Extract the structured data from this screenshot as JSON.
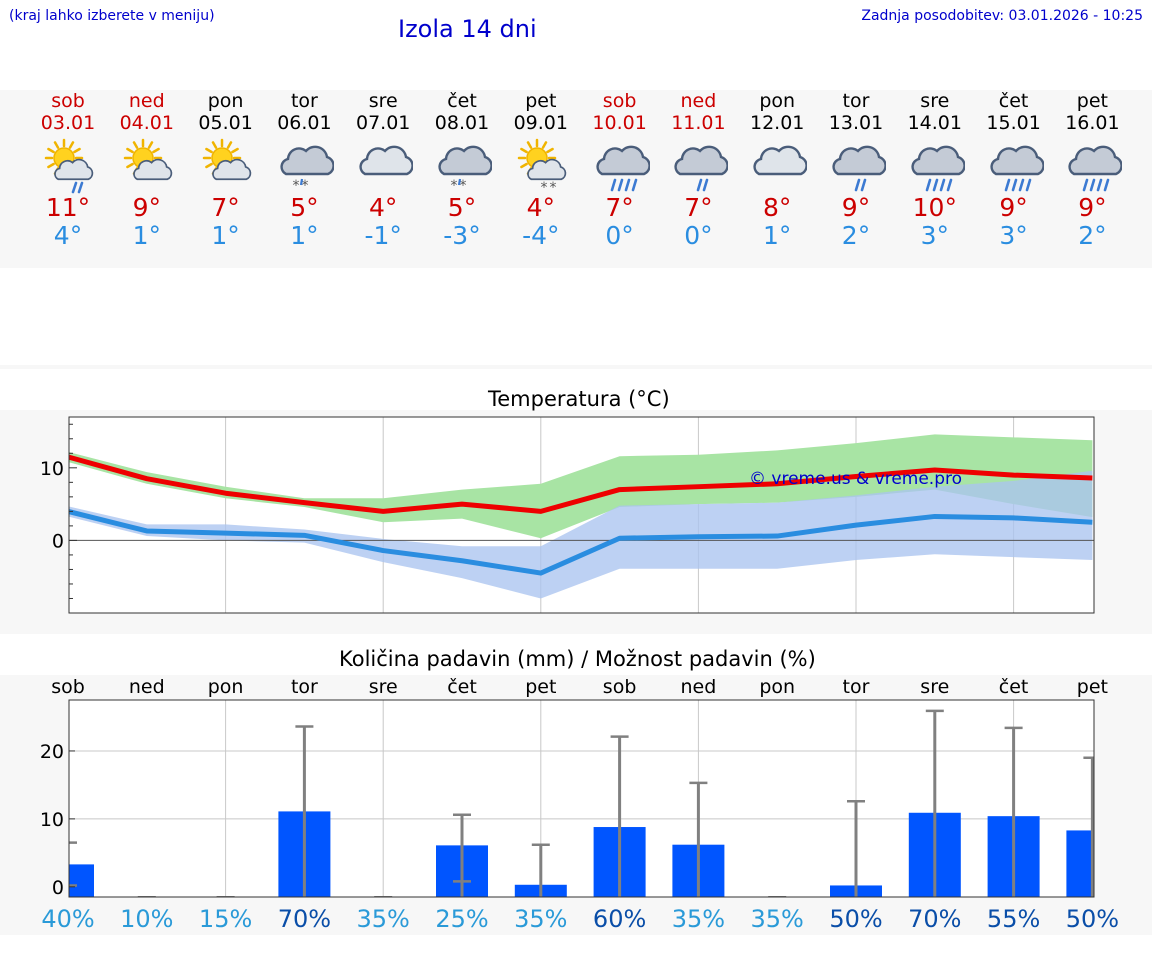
{
  "header": {
    "left_note": "(kraj lahko izberete v meniju)",
    "title": "Izola 14 dni",
    "last_update": "Zadnja posodobitev: 03.01.2026 - 10:25"
  },
  "days": [
    {
      "name": "sob",
      "date": "03.01",
      "weekend": true,
      "icon": "sun-cloud-rain-icon",
      "tmax": "11°",
      "tmin": "4°"
    },
    {
      "name": "ned",
      "date": "04.01",
      "weekend": true,
      "icon": "sun-cloud-icon",
      "tmax": "9°",
      "tmin": "1°"
    },
    {
      "name": "pon",
      "date": "05.01",
      "weekend": false,
      "icon": "sun-cloud-icon",
      "tmax": "7°",
      "tmin": "1°"
    },
    {
      "name": "tor",
      "date": "06.01",
      "weekend": false,
      "icon": "cloud-snow-icon",
      "tmax": "5°",
      "tmin": "1°"
    },
    {
      "name": "sre",
      "date": "07.01",
      "weekend": false,
      "icon": "cloud-icon",
      "tmax": "4°",
      "tmin": "-1°"
    },
    {
      "name": "čet",
      "date": "08.01",
      "weekend": false,
      "icon": "cloud-snow-icon",
      "tmax": "5°",
      "tmin": "-3°"
    },
    {
      "name": "pet",
      "date": "09.01",
      "weekend": false,
      "icon": "sun-cloud-snow-icon",
      "tmax": "4°",
      "tmin": "-4°"
    },
    {
      "name": "sob",
      "date": "10.01",
      "weekend": true,
      "icon": "cloud-heavy-rain-icon",
      "tmax": "7°",
      "tmin": "0°"
    },
    {
      "name": "ned",
      "date": "11.01",
      "weekend": true,
      "icon": "cloud-rain-icon",
      "tmax": "7°",
      "tmin": "0°"
    },
    {
      "name": "pon",
      "date": "12.01",
      "weekend": false,
      "icon": "cloud-icon",
      "tmax": "8°",
      "tmin": "1°"
    },
    {
      "name": "tor",
      "date": "13.01",
      "weekend": false,
      "icon": "cloud-rain-icon",
      "tmax": "9°",
      "tmin": "2°"
    },
    {
      "name": "sre",
      "date": "14.01",
      "weekend": false,
      "icon": "cloud-heavy-rain-icon",
      "tmax": "10°",
      "tmin": "3°"
    },
    {
      "name": "čet",
      "date": "15.01",
      "weekend": false,
      "icon": "cloud-heavy-rain-icon",
      "tmax": "9°",
      "tmin": "3°"
    },
    {
      "name": "pet",
      "date": "16.01",
      "weekend": false,
      "icon": "cloud-heavy-rain-icon",
      "tmax": "9°",
      "tmin": "2°"
    }
  ],
  "colors": {
    "max_line": "#ee0000",
    "min_line": "#2a8de0",
    "max_band": "#a8e4a4",
    "min_band": "#aac4f0",
    "overlap_band": "#7ec8a8",
    "bar": "#0055ff",
    "whisker": "#808080",
    "pct_light": "#2a9ad8",
    "pct_dark": "#0a4ea8",
    "title_blue": "#0000cc"
  },
  "chart_data": [
    {
      "type": "line",
      "title": "Temperatura (°C)",
      "x": [
        "sob",
        "ned",
        "pon",
        "tor",
        "sre",
        "čet",
        "pet",
        "sob",
        "ned",
        "pon",
        "tor",
        "sre",
        "čet",
        "pet"
      ],
      "ylim": [
        -10,
        17
      ],
      "yticks": [
        0,
        10
      ],
      "yticks_labels": [
        "0",
        "10"
      ],
      "watermark": "© vreme.us & vreme.pro",
      "series": [
        {
          "name": "max",
          "values": [
            11.5,
            8.5,
            6.5,
            5.2,
            4.0,
            5.0,
            4.0,
            7.0,
            7.4,
            7.8,
            8.8,
            9.7,
            9.0,
            8.6
          ],
          "band_low": [
            10.8,
            7.8,
            5.8,
            4.6,
            2.5,
            3.0,
            0.3,
            4.6,
            5.0,
            5.2,
            6.0,
            7.0,
            5.0,
            3.2
          ],
          "band_high": [
            12.2,
            9.4,
            7.4,
            5.8,
            5.8,
            7.0,
            7.8,
            11.6,
            11.8,
            12.4,
            13.4,
            14.6,
            14.2,
            13.8
          ]
        },
        {
          "name": "min",
          "values": [
            4.0,
            1.3,
            1.0,
            0.7,
            -1.4,
            -2.8,
            -4.5,
            0.3,
            0.5,
            0.6,
            2.1,
            3.3,
            3.1,
            2.5
          ],
          "band_low": [
            3.3,
            0.6,
            0.0,
            -0.3,
            -3.0,
            -5.2,
            -8.0,
            -3.9,
            -3.9,
            -3.9,
            -2.7,
            -1.9,
            -2.3,
            -2.7
          ],
          "band_high": [
            4.7,
            2.2,
            2.2,
            1.5,
            0.2,
            -0.8,
            -0.8,
            4.8,
            5.0,
            5.2,
            6.2,
            7.4,
            8.2,
            9.6
          ]
        }
      ]
    },
    {
      "type": "bar",
      "title": "Količina padavin (mm) / Možnost padavin (%)",
      "categories": [
        "sob",
        "ned",
        "pon",
        "tor",
        "sre",
        "čet",
        "pet",
        "sob",
        "ned",
        "pon",
        "tor",
        "sre",
        "čet",
        "pet"
      ],
      "ylim": [
        -1.5,
        27.5
      ],
      "yticks": [
        0,
        10,
        20
      ],
      "yticks_labels": [
        "0",
        "10",
        "20"
      ],
      "values": [
        3.3,
        0,
        0,
        11.1,
        0,
        6.1,
        0.3,
        8.8,
        6.2,
        0,
        0.2,
        10.9,
        10.4,
        8.3
      ],
      "whisker_high": [
        6.5,
        0,
        0,
        23.6,
        0,
        10.6,
        6.2,
        22.1,
        15.3,
        0,
        12.6,
        25.9,
        23.4,
        19.0
      ],
      "whisker_low": [
        0.2,
        0,
        0,
        0,
        0,
        0.8,
        0,
        0,
        0,
        0,
        0,
        0,
        0,
        0
      ],
      "probability": [
        "40%",
        "10%",
        "15%",
        "70%",
        "35%",
        "25%",
        "35%",
        "60%",
        "35%",
        "35%",
        "50%",
        "70%",
        "55%",
        "50%"
      ],
      "probability_dark": [
        false,
        false,
        false,
        true,
        false,
        false,
        false,
        true,
        false,
        false,
        true,
        true,
        true,
        true
      ]
    }
  ]
}
